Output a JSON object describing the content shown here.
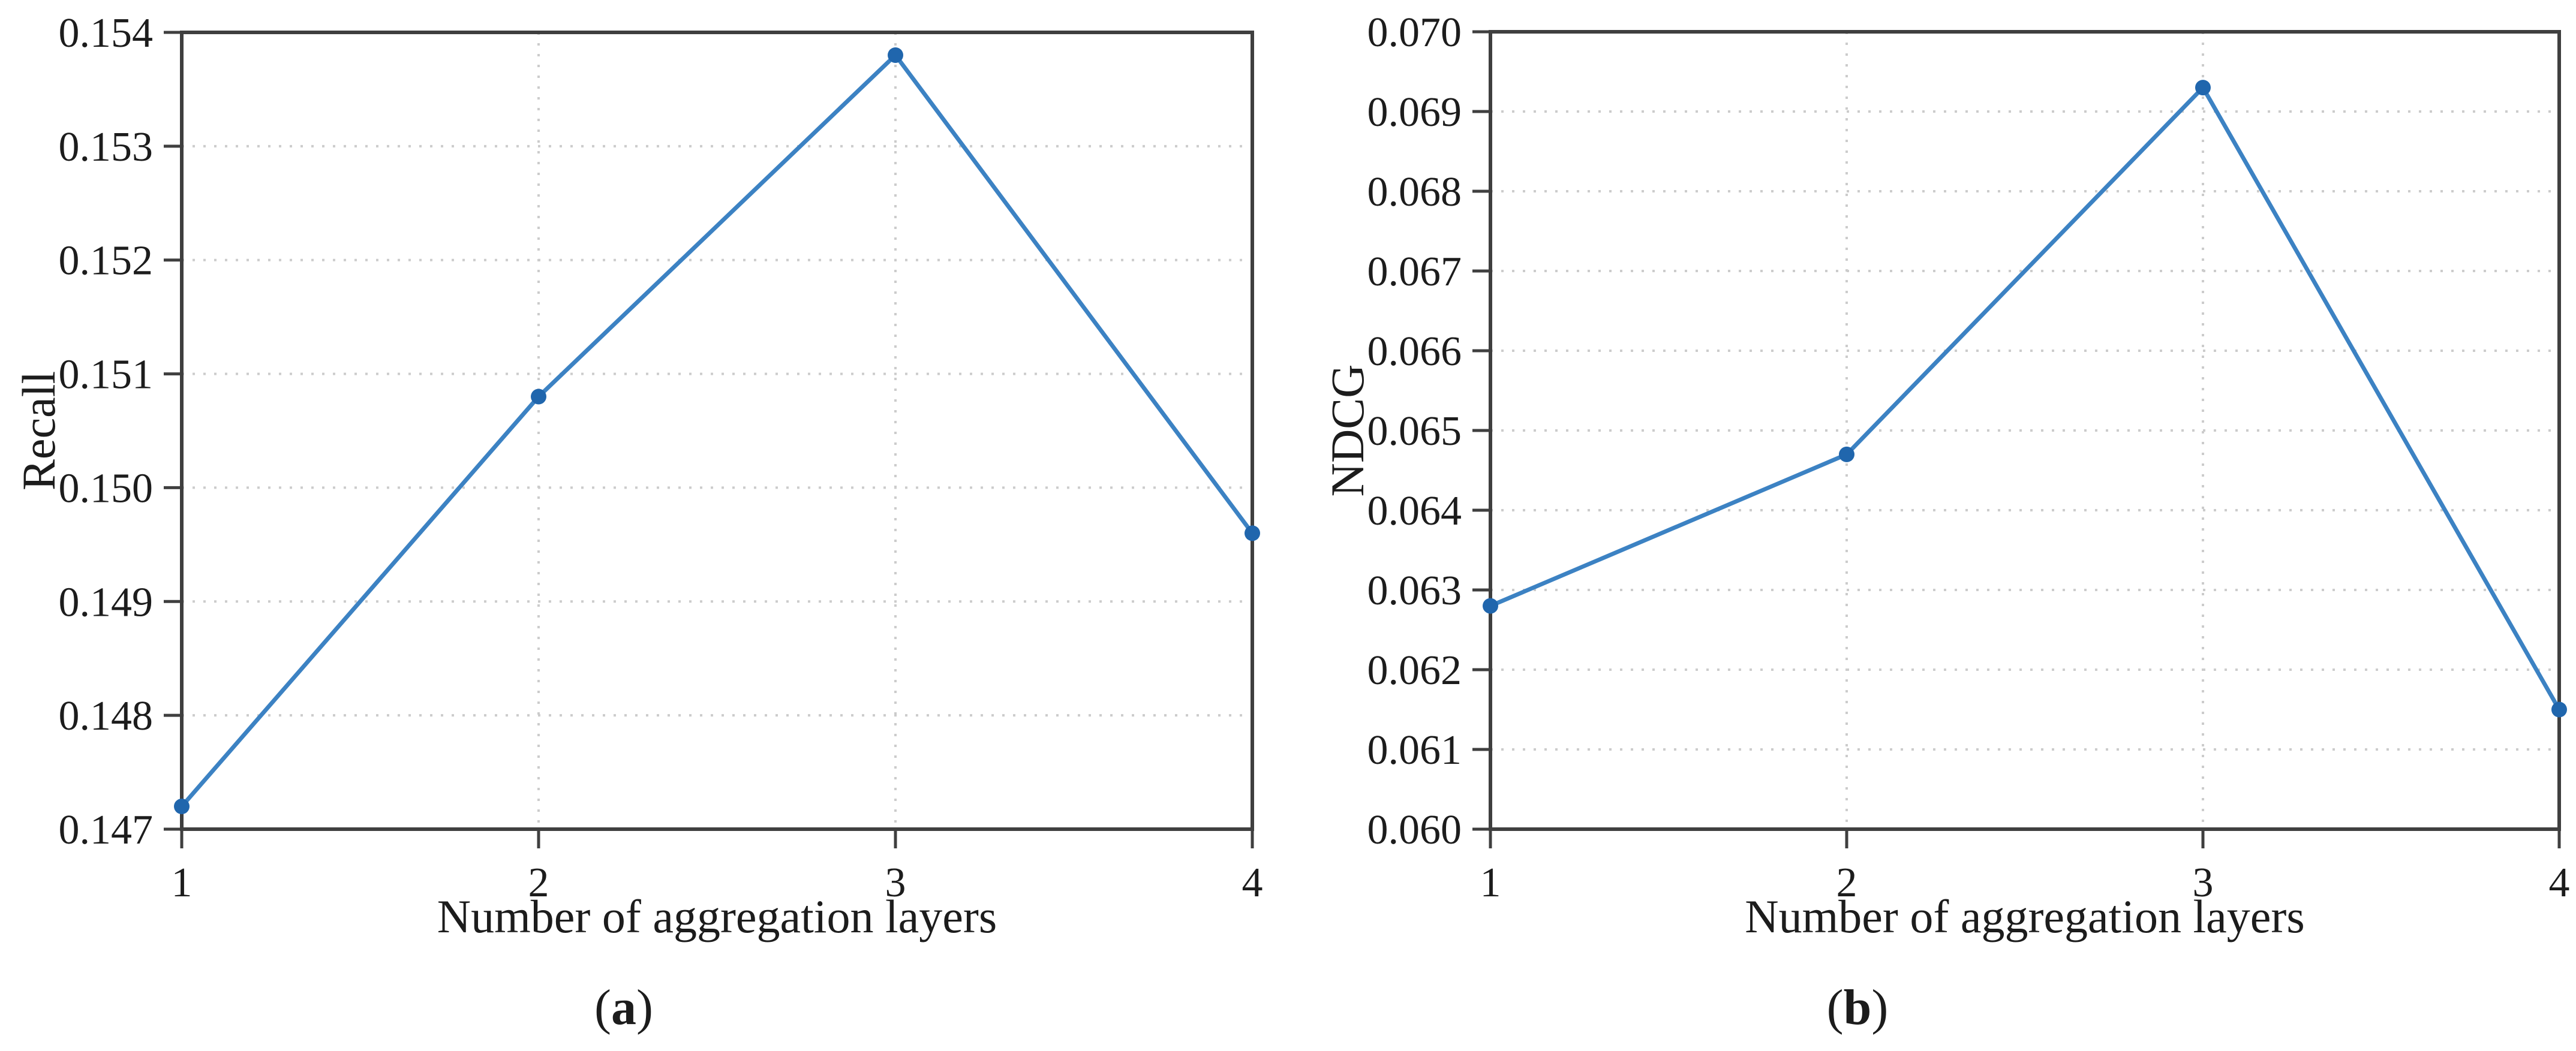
{
  "page": {
    "background": "#ffffff",
    "text_color": "#1c1c1c"
  },
  "chart_data": [
    {
      "id": "recall",
      "type": "line",
      "title": "",
      "xlabel": "Number of aggregation layers",
      "ylabel": "Recall",
      "x": [
        1,
        2,
        3,
        4
      ],
      "values": [
        0.1472,
        0.1508,
        0.1538,
        0.1496
      ],
      "xlim": [
        1,
        4
      ],
      "ylim": [
        0.147,
        0.154
      ],
      "ytick_step": 0.001,
      "xtick_labels": [
        "1",
        "2",
        "3",
        "4"
      ],
      "ytick_labels": [
        "0.147",
        "0.148",
        "0.149",
        "0.150",
        "0.151",
        "0.152",
        "0.153",
        "0.154"
      ],
      "grid": "dotted horizontal lines at interior y ticks, dotted vertical lines at interior x ticks",
      "legend": null,
      "caption": {
        "open": "(",
        "label": "a",
        "close": ")"
      },
      "line_color": "#3c82c3",
      "marker_color": "#2066ad",
      "spine_color": "#3f3f3f",
      "grid_color": "#cccccc"
    },
    {
      "id": "ndcg",
      "type": "line",
      "title": "",
      "xlabel": "Number of aggregation layers",
      "ylabel": "NDCG",
      "x": [
        1,
        2,
        3,
        4
      ],
      "values": [
        0.0628,
        0.0647,
        0.0693,
        0.0615
      ],
      "xlim": [
        1,
        4
      ],
      "ylim": [
        0.06,
        0.07
      ],
      "ytick_step": 0.001,
      "xtick_labels": [
        "1",
        "2",
        "3",
        "4"
      ],
      "ytick_labels": [
        "0.060",
        "0.061",
        "0.062",
        "0.063",
        "0.064",
        "0.065",
        "0.066",
        "0.067",
        "0.068",
        "0.069",
        "0.070"
      ],
      "grid": "dotted horizontal lines at interior y ticks, dotted vertical lines at interior x ticks",
      "legend": null,
      "caption": {
        "open": "(",
        "label": "b",
        "close": ")"
      },
      "line_color": "#3c82c3",
      "marker_color": "#2066ad",
      "spine_color": "#3f3f3f",
      "grid_color": "#cccccc"
    }
  ]
}
